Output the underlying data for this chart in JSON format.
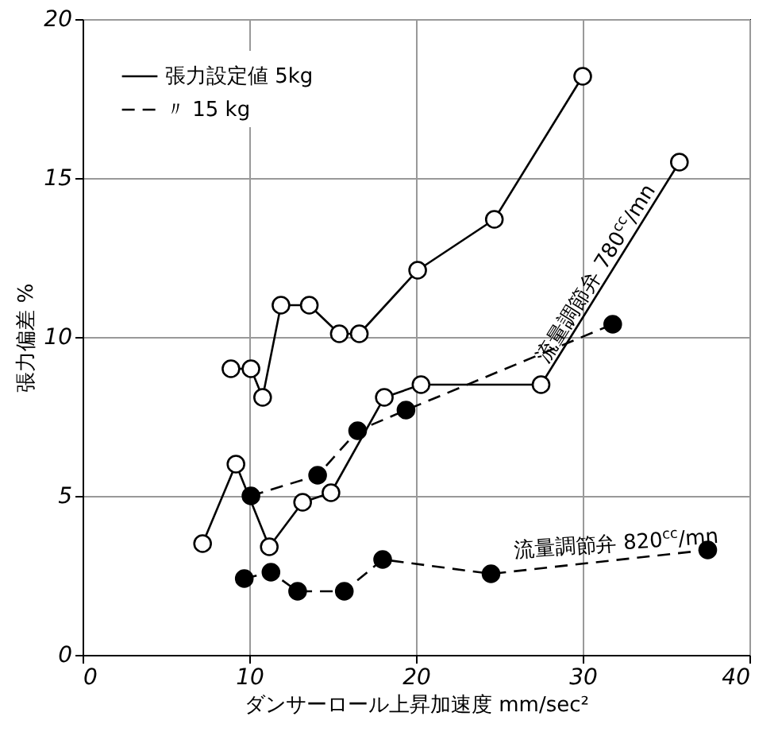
{
  "chart_data": {
    "type": "line",
    "xlabel": "ダンサーロール上昇加速度 mm/sec²",
    "ylabel": "張力偏差 %",
    "xlim": [
      0,
      40
    ],
    "xticks": [
      0,
      10,
      20,
      30,
      40
    ],
    "ylim": [
      0,
      20
    ],
    "yticks": [
      0,
      5,
      10,
      15,
      20
    ],
    "grid": true,
    "legend": "top left",
    "marker": "circle",
    "series": [
      {
        "name": "張力設定値 5kg",
        "color": "#000000",
        "line_style": "solid",
        "x": [
          8.9,
          10.1,
          10.8,
          11.9,
          13.6,
          15.4,
          16.6,
          20.1,
          24.7,
          30.0
        ],
        "values": [
          9.0,
          9.0,
          8.1,
          11.0,
          11.0,
          10.1,
          10.1,
          12.1,
          13.7,
          18.2
        ]
      },
      {
        "color": "#000000",
        "line_style": "solid",
        "x": [
          7.2,
          9.2,
          11.2,
          13.2,
          14.9,
          18.1,
          20.3,
          27.5,
          35.8
        ],
        "values": [
          3.5,
          6.0,
          3.4,
          4.8,
          5.1,
          8.1,
          8.5,
          8.5,
          15.5
        ]
      },
      {
        "name": "〃 15 kg",
        "color": "#000000",
        "line_style": "dashed",
        "x": [
          10.1,
          14.1,
          16.5,
          19.4,
          31.8
        ],
        "values": [
          5.0,
          5.65,
          7.05,
          7.7,
          10.4
        ]
      },
      {
        "color": "#000000",
        "line_style": "dashed",
        "x": [
          9.7,
          11.3,
          12.9,
          15.7,
          18.0,
          24.5,
          37.5
        ],
        "values": [
          2.4,
          2.6,
          2.0,
          2.0,
          3.0,
          2.55,
          3.3
        ]
      }
    ],
    "annotations": [
      "流量調節弁 780$^{cc}$/mn",
      "流量調節弁 820$^{cc}$/mn"
    ]
  }
}
